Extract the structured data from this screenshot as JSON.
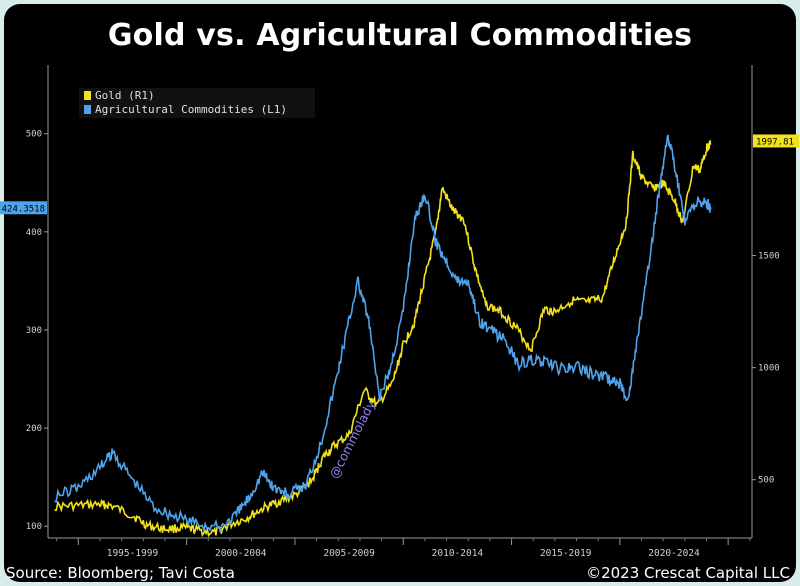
{
  "chart_data": {
    "type": "line",
    "title": "Gold vs. Agricultural Commodities",
    "x_tick_labels": [
      "1995-1999",
      "2000-2004",
      "2005-2009",
      "2010-2014",
      "2015-2019",
      "2020-2024"
    ],
    "xlim": [
      1993.6,
      2026.1
    ],
    "left_axis": {
      "ticks": [
        100,
        200,
        300,
        400,
        500
      ],
      "ylim": [
        88,
        570
      ]
    },
    "right_axis": {
      "ticks": [
        500,
        1000,
        1500
      ],
      "ylim": [
        240,
        2350
      ]
    },
    "series": [
      {
        "name": "Gold (R1)",
        "axis": "right",
        "color": "#f2e21e",
        "last_value_label": "1997.81",
        "x": [
          1993.9,
          1995.0,
          1996.0,
          1996.5,
          1997.5,
          1998.2,
          1999.0,
          1999.8,
          2000.5,
          2001.3,
          2002.0,
          2002.8,
          2003.5,
          2004.2,
          2005.0,
          2005.8,
          2006.3,
          2006.8,
          2007.5,
          2008.2,
          2008.8,
          2009.5,
          2010.0,
          2010.5,
          2011.0,
          2011.5,
          2011.8,
          2012.3,
          2012.8,
          2013.3,
          2013.8,
          2014.5,
          2015.2,
          2015.9,
          2016.5,
          2017.0,
          2017.8,
          2018.5,
          2019.2,
          2019.8,
          2020.3,
          2020.6,
          2021.0,
          2021.5,
          2022.0,
          2022.5,
          2022.9,
          2023.4,
          2023.7,
          2024.0,
          2024.2
        ],
        "y": [
          380,
          385,
          390,
          385,
          340,
          295,
          280,
          285,
          275,
          262,
          300,
          330,
          370,
          400,
          430,
          500,
          600,
          650,
          700,
          900,
          830,
          930,
          1100,
          1200,
          1400,
          1600,
          1800,
          1700,
          1660,
          1450,
          1280,
          1250,
          1180,
          1080,
          1260,
          1250,
          1300,
          1290,
          1310,
          1500,
          1650,
          1950,
          1850,
          1800,
          1820,
          1750,
          1650,
          1900,
          1880,
          1980,
          2000
        ]
      },
      {
        "name": "Agricultural Commodities (L1)",
        "axis": "left",
        "color": "#4ea3ea",
        "last_value_label": "424.3518",
        "x": [
          1993.9,
          1995.0,
          1996.0,
          1996.6,
          1997.5,
          1998.5,
          1999.5,
          2000.5,
          2001.5,
          2002.3,
          2002.9,
          2003.5,
          2004.0,
          2004.7,
          2005.5,
          2006.2,
          2006.8,
          2007.4,
          2007.9,
          2008.4,
          2008.9,
          2009.4,
          2010.0,
          2010.5,
          2011.0,
          2011.5,
          2012.0,
          2012.5,
          2013.0,
          2013.5,
          2014.0,
          2014.7,
          2015.3,
          2016.0,
          2016.7,
          2017.3,
          2018.0,
          2018.8,
          2019.5,
          2020.0,
          2020.4,
          2020.8,
          2021.3,
          2021.8,
          2022.2,
          2022.5,
          2023.0,
          2023.5,
          2024.0,
          2024.2
        ],
        "y": [
          130,
          140,
          160,
          175,
          148,
          120,
          110,
          103,
          98,
          112,
          130,
          155,
          140,
          132,
          142,
          185,
          240,
          300,
          350,
          310,
          230,
          260,
          320,
          410,
          440,
          390,
          370,
          350,
          350,
          310,
          300,
          290,
          265,
          270,
          265,
          260,
          262,
          255,
          250,
          245,
          230,
          290,
          360,
          440,
          500,
          470,
          410,
          430,
          430,
          424
        ]
      }
    ],
    "legend": "top-left"
  },
  "footer": {
    "source": "Source: Bloomberg; Tavi Costa",
    "copyright": "©2023 Crescat Capital LLC"
  },
  "watermark": "@commolady"
}
